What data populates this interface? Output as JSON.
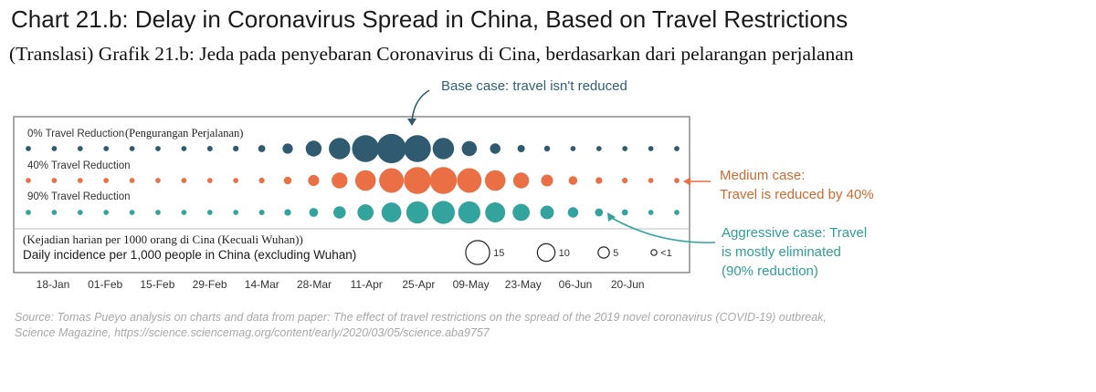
{
  "title": "Chart 21.b: Delay in Coronavirus Spread in China, Based on Travel Restrictions",
  "subtitle": "(Translasi) Grafik 21.b: Jeda pada penyebaran  Coronavirus di Cina, berdasarkan dari pelarangan perjalanan",
  "source_line1": "Source: Tomas Pueyo analysis on charts and data from paper: The effect of travel restrictions on the spread of the 2019 novel coronavirus (COVID-19) outbreak,",
  "source_line2": "Science Magazine, https://science.sciencemag.org/content/early/2020/03/05/science.aba9757",
  "annotations": {
    "base": "Base case: travel isn't reduced",
    "medium_line1": "Medium case:",
    "medium_line2": "Travel is reduced by 40%",
    "aggressive_line1": "Aggressive case: Travel",
    "aggressive_line2": "is mostly eliminated",
    "aggressive_line3": "(90% reduction)"
  },
  "colors": {
    "base": "#2f5a70",
    "medium": "#ea6f44",
    "aggressive": "#33a39e",
    "frame": "#8a8a8a",
    "divider": "#bdbdbd"
  },
  "chart_data": {
    "type": "bubble-timeline",
    "x_ticks": [
      "18-Jan",
      "01-Feb",
      "15-Feb",
      "29-Feb",
      "14-Mar",
      "28-Mar",
      "11-Apr",
      "25-Apr",
      "09-May",
      "23-May",
      "06-Jun",
      "20-Jun"
    ],
    "legend_title": "Daily incidence per 1,000 people in China (excluding Wuhan)",
    "legend_title_translation": "(Kejadian harian per 1000 orang di Cina (Kecuali Wuhan))",
    "size_legend": [
      {
        "label": "15",
        "value": 15
      },
      {
        "label": "10",
        "value": 10
      },
      {
        "label": "5",
        "value": 5
      },
      {
        "label": "<1",
        "value": 0.7
      }
    ],
    "series": [
      {
        "name": "0% Travel Reduction",
        "name_translation": "(Pengurangan Perjalanan)",
        "color_key": "base",
        "values": [
          0.3,
          0.3,
          0.3,
          0.3,
          0.3,
          0.3,
          0.3,
          0.4,
          0.6,
          1.5,
          3.5,
          7,
          10.5,
          14,
          15.5,
          14,
          10.5,
          6.5,
          3.6,
          1.6,
          0.7,
          0.3,
          0.3,
          0.3,
          0.3,
          0.3
        ]
      },
      {
        "name": "40% Travel Reduction",
        "color_key": "medium",
        "values": [
          0.3,
          0.3,
          0.3,
          0.3,
          0.3,
          0.3,
          0.3,
          0.3,
          0.3,
          0.6,
          1.8,
          4,
          7,
          10,
          12.5,
          14,
          14,
          12.5,
          10,
          7,
          4.5,
          2.5,
          1.2,
          0.6,
          0.3,
          0.3
        ]
      },
      {
        "name": "90% Travel Reduction",
        "color_key": "aggressive",
        "values": [
          0.3,
          0.3,
          0.3,
          0.3,
          0.3,
          0.3,
          0.3,
          0.3,
          0.3,
          0.5,
          1.2,
          2.6,
          4.8,
          7.2,
          9.5,
          11,
          11.5,
          11,
          9.6,
          7.8,
          5.6,
          3.6,
          2,
          0.9,
          0.3,
          0.3
        ]
      }
    ]
  }
}
